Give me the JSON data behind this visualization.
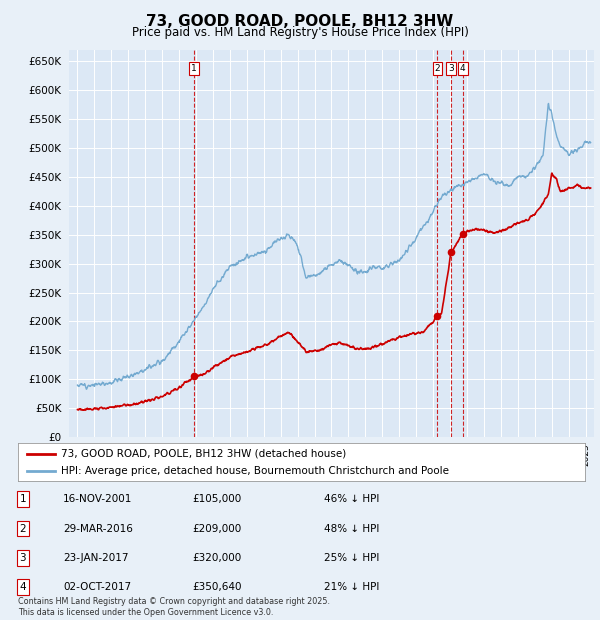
{
  "title": "73, GOOD ROAD, POOLE, BH12 3HW",
  "subtitle": "Price paid vs. HM Land Registry's House Price Index (HPI)",
  "bg_color": "#e8f0f8",
  "plot_bg": "#dce8f5",
  "grid_color": "#ffffff",
  "transactions": [
    {
      "num": 1,
      "date_num": 2001.88,
      "price": 105000,
      "label": "1",
      "date_str": "16-NOV-2001",
      "pct": "46% ↓ HPI"
    },
    {
      "num": 2,
      "date_num": 2016.25,
      "price": 209000,
      "label": "2",
      "date_str": "29-MAR-2016",
      "pct": "48% ↓ HPI"
    },
    {
      "num": 3,
      "date_num": 2017.06,
      "price": 320000,
      "label": "3",
      "date_str": "23-JAN-2017",
      "pct": "25% ↓ HPI"
    },
    {
      "num": 4,
      "date_num": 2017.75,
      "price": 350640,
      "label": "4",
      "date_str": "02-OCT-2017",
      "pct": "21% ↓ HPI"
    }
  ],
  "sale_line_color": "#cc0000",
  "hpi_line_color": "#74aad0",
  "vline_color": "#cc0000",
  "ylim": [
    0,
    670000
  ],
  "yticks": [
    0,
    50000,
    100000,
    150000,
    200000,
    250000,
    300000,
    350000,
    400000,
    450000,
    500000,
    550000,
    600000,
    650000
  ],
  "xlim_start": 1994.5,
  "xlim_end": 2025.5,
  "footnote": "Contains HM Land Registry data © Crown copyright and database right 2025.\nThis data is licensed under the Open Government Licence v3.0.",
  "legend_entries": [
    "73, GOOD ROAD, POOLE, BH12 3HW (detached house)",
    "HPI: Average price, detached house, Bournemouth Christchurch and Poole"
  ],
  "table_rows": [
    [
      "1",
      "16-NOV-2001",
      "£105,000",
      "46% ↓ HPI"
    ],
    [
      "2",
      "29-MAR-2016",
      "£209,000",
      "48% ↓ HPI"
    ],
    [
      "3",
      "23-JAN-2017",
      "£320,000",
      "25% ↓ HPI"
    ],
    [
      "4",
      "02-OCT-2017",
      "£350,640",
      "21% ↓ HPI"
    ]
  ]
}
